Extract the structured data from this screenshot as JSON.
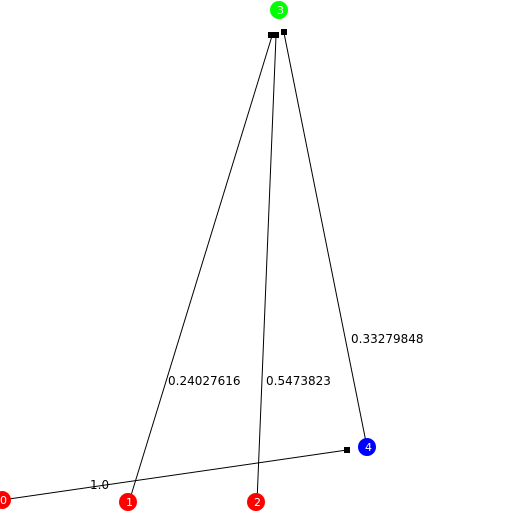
{
  "nodes": [
    {
      "id": "0",
      "label": "0",
      "color": "#ff0000"
    },
    {
      "id": "1",
      "label": "1",
      "color": "#ff0000"
    },
    {
      "id": "2",
      "label": "2",
      "color": "#ff0000"
    },
    {
      "id": "3",
      "label": "3",
      "color": "#00ff00"
    },
    {
      "id": "4",
      "label": "4",
      "color": "#0000ff"
    }
  ],
  "edges": [
    {
      "from": "0",
      "to": "4",
      "label": "1.0"
    },
    {
      "from": "1",
      "to": "3",
      "label": "0.24027616"
    },
    {
      "from": "2",
      "to": "3",
      "label": "0.5473823"
    },
    {
      "from": "4",
      "to": "3",
      "label": "0.33279848"
    }
  ]
}
